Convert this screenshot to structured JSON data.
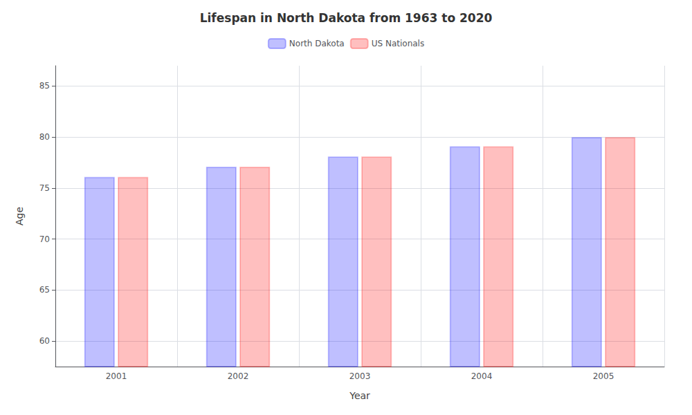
{
  "chart_data": {
    "type": "bar",
    "title": "Lifespan in North Dakota from 1963 to 2020",
    "x_label": "Year",
    "y_label": "Age",
    "categories": [
      "2001",
      "2002",
      "2003",
      "2004",
      "2005"
    ],
    "series": [
      {
        "name": "North Dakota",
        "color": "#0000ff",
        "values": [
          76.1,
          77.1,
          78.1,
          79.1,
          80.0
        ]
      },
      {
        "name": "US Nationals",
        "color": "#ff0000",
        "values": [
          76.1,
          77.1,
          78.1,
          79.1,
          80.0
        ]
      }
    ],
    "ylim": [
      57.5,
      87
    ],
    "yticks": [
      60,
      65,
      70,
      75,
      80,
      85
    ],
    "grid": true,
    "legend": "top"
  }
}
